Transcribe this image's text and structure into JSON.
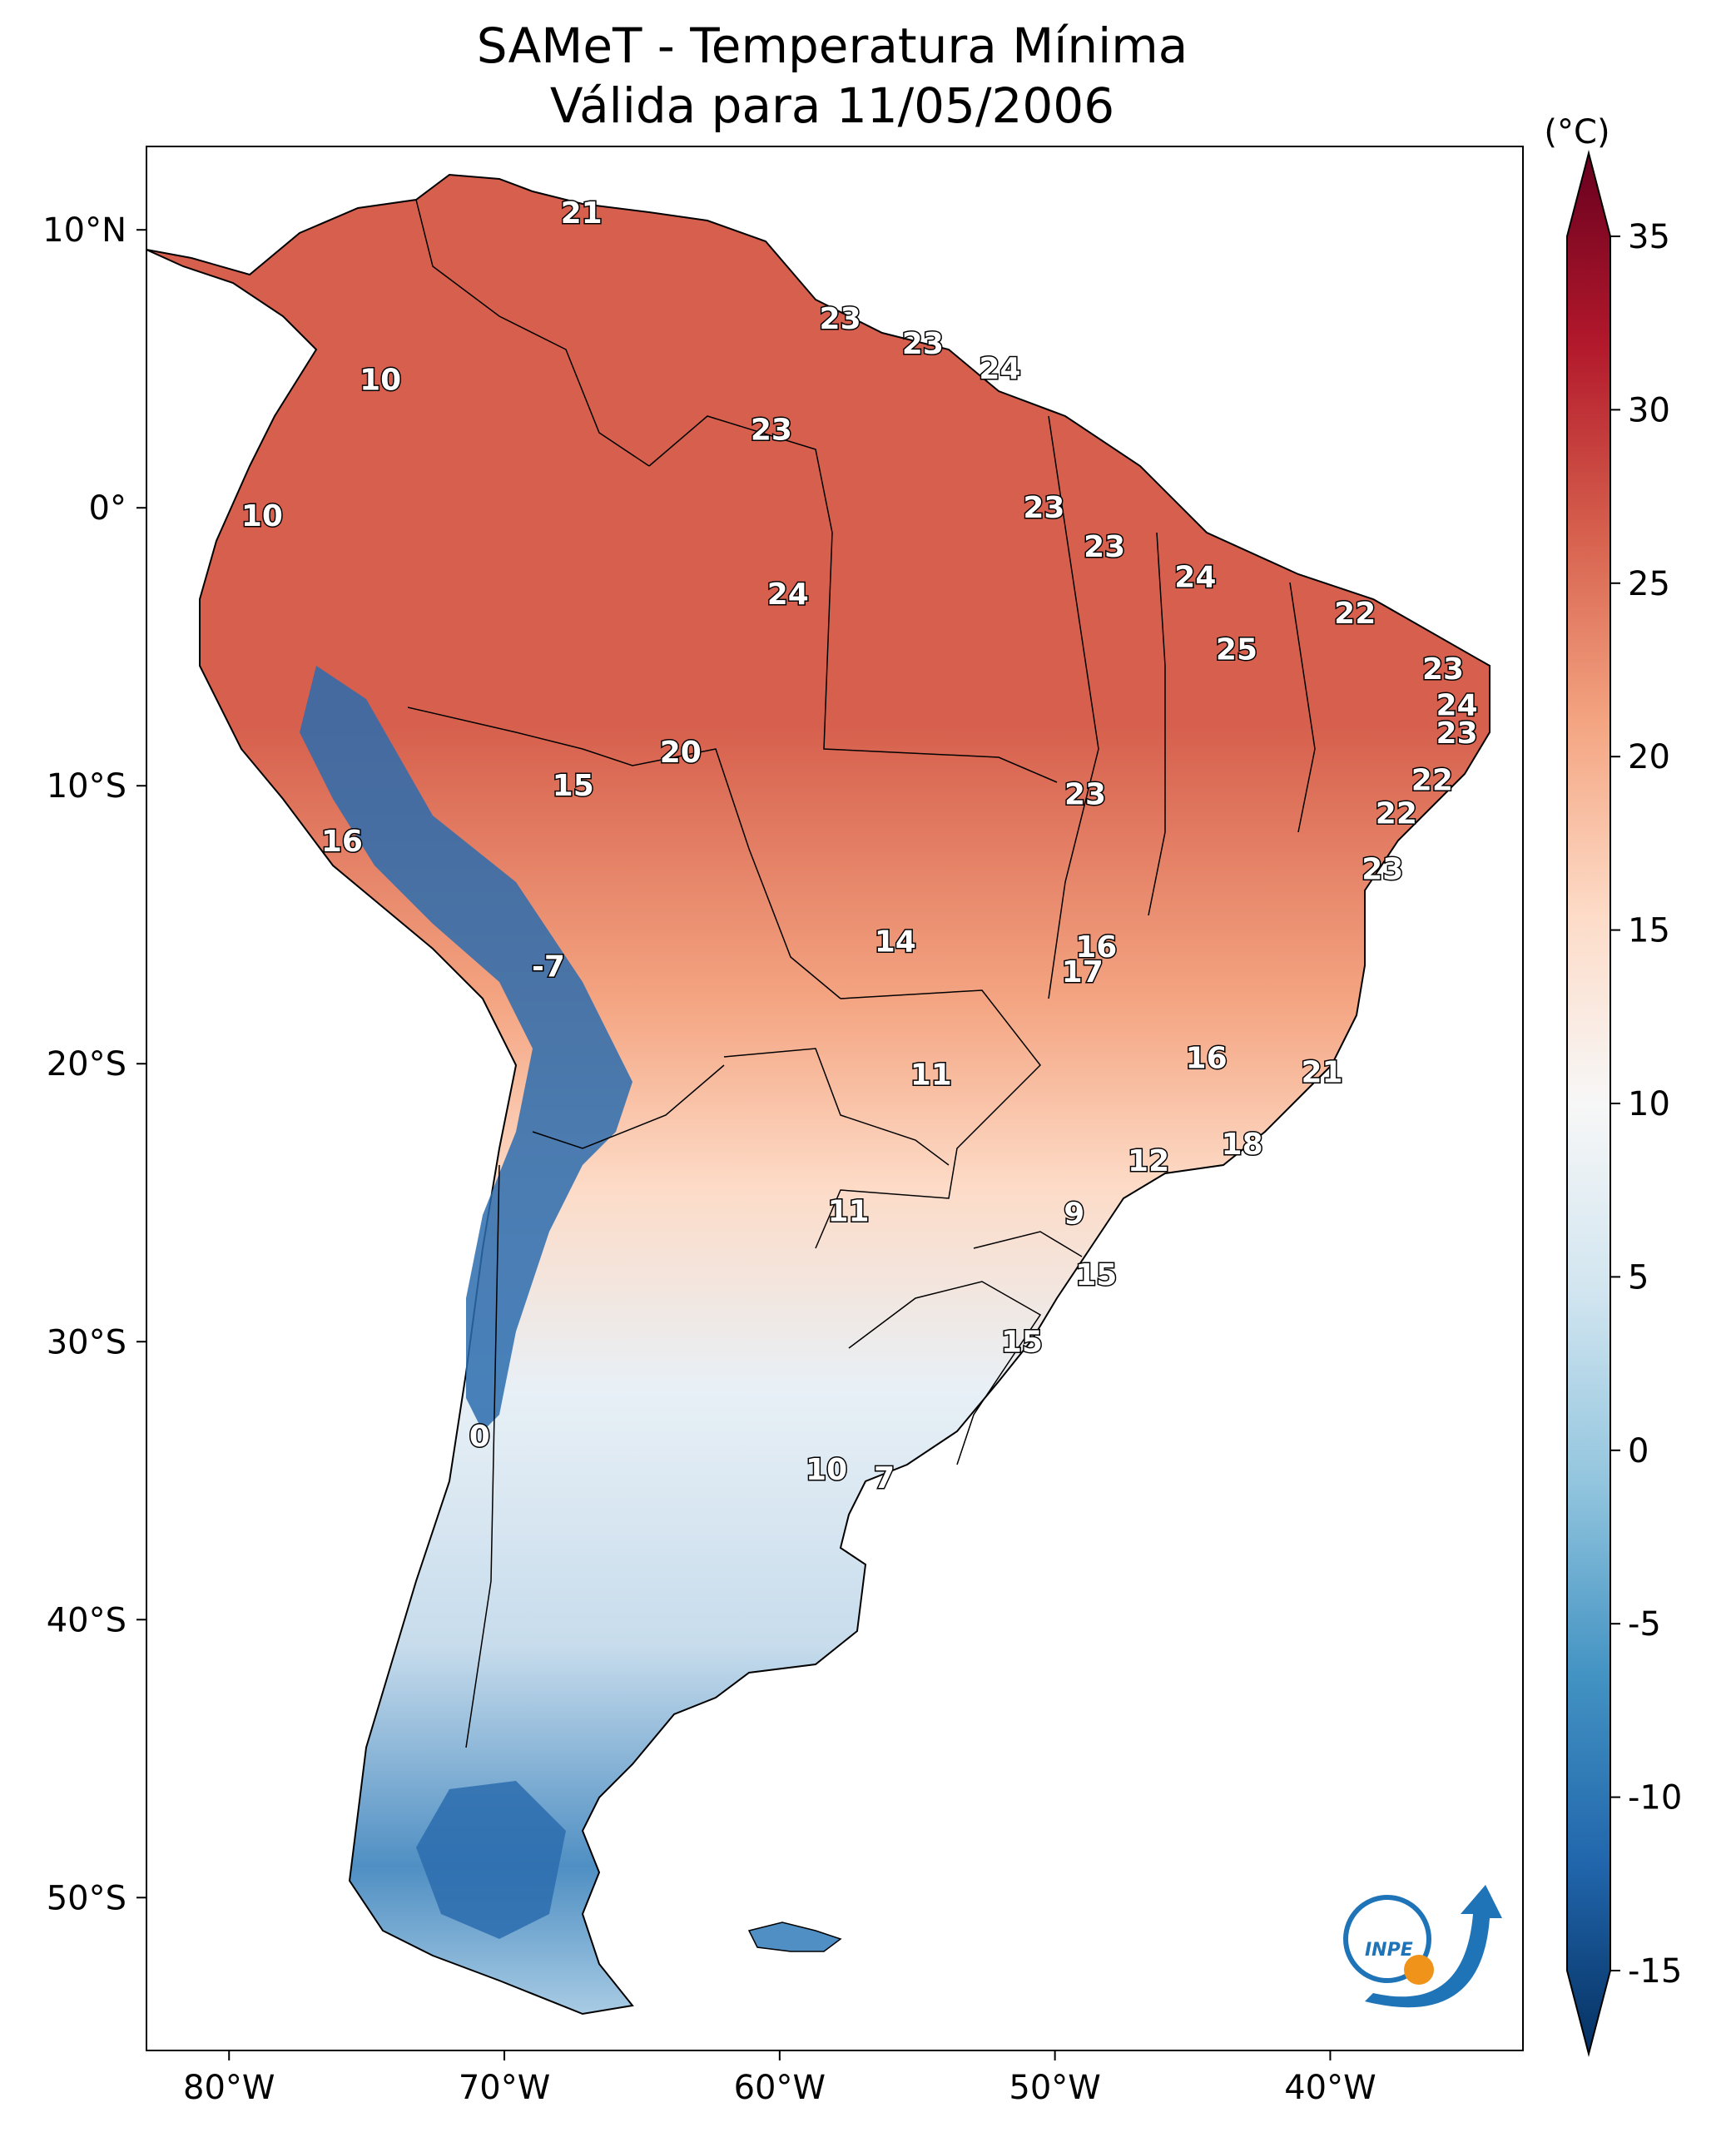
{
  "title": {
    "line1": "SAMeT - Temperatura Mínima",
    "line2": "Válida para 11/05/2006"
  },
  "map": {
    "lon_ticks": [
      "80°W",
      "70°W",
      "60°W",
      "50°W",
      "40°W"
    ],
    "lat_ticks": [
      "10°N",
      "0°",
      "10°S",
      "20°S",
      "30°S",
      "40°S",
      "50°S"
    ],
    "lon_values": [
      -80,
      -70,
      -60,
      -50,
      -40
    ],
    "lat_values": [
      10,
      0,
      -10,
      -20,
      -30,
      -40,
      -50
    ],
    "extent": {
      "lon": [
        -83,
        -33
      ],
      "lat": [
        -55.5,
        13
      ]
    }
  },
  "colorbar": {
    "unit": "(°C)",
    "ticks": [
      "35",
      "30",
      "25",
      "20",
      "15",
      "10",
      "5",
      "0",
      "-5",
      "-10",
      "-15"
    ],
    "tick_values": [
      35,
      30,
      25,
      20,
      15,
      10,
      5,
      0,
      -5,
      -10,
      -15
    ],
    "range": [
      -15,
      35
    ],
    "colormap": "RdBu_r",
    "colors": [
      "#053061",
      "#2166ac",
      "#4393c3",
      "#92c5de",
      "#d1e5f0",
      "#f7f7f7",
      "#fddbc7",
      "#f4a582",
      "#d6604d",
      "#b2182b",
      "#67001f"
    ]
  },
  "station_labels": [
    {
      "text": "21",
      "lon": -67.2,
      "lat": 10.6
    },
    {
      "text": "10",
      "lon": -74.5,
      "lat": 4.6
    },
    {
      "text": "23",
      "lon": -57.8,
      "lat": 6.8
    },
    {
      "text": "23",
      "lon": -54.8,
      "lat": 5.9
    },
    {
      "text": "24",
      "lon": -52.0,
      "lat": 5.0
    },
    {
      "text": "23",
      "lon": -60.3,
      "lat": 2.8
    },
    {
      "text": "10",
      "lon": -78.8,
      "lat": -0.3
    },
    {
      "text": "23",
      "lon": -50.4,
      "lat": 0.0
    },
    {
      "text": "23",
      "lon": -48.2,
      "lat": -1.4
    },
    {
      "text": "24",
      "lon": -59.7,
      "lat": -3.1
    },
    {
      "text": "24",
      "lon": -44.9,
      "lat": -2.5
    },
    {
      "text": "22",
      "lon": -39.1,
      "lat": -3.8
    },
    {
      "text": "25",
      "lon": -43.4,
      "lat": -5.1
    },
    {
      "text": "23",
      "lon": -35.9,
      "lat": -5.8
    },
    {
      "text": "24",
      "lon": -35.4,
      "lat": -7.1
    },
    {
      "text": "23",
      "lon": -35.4,
      "lat": -8.1
    },
    {
      "text": "20",
      "lon": -63.6,
      "lat": -8.8
    },
    {
      "text": "22",
      "lon": -36.3,
      "lat": -9.8
    },
    {
      "text": "15",
      "lon": -67.5,
      "lat": -10.0
    },
    {
      "text": "23",
      "lon": -48.9,
      "lat": -10.3
    },
    {
      "text": "22",
      "lon": -37.6,
      "lat": -11.0
    },
    {
      "text": "16",
      "lon": -75.9,
      "lat": -12.0
    },
    {
      "text": "23",
      "lon": -38.1,
      "lat": -13.0
    },
    {
      "text": "14",
      "lon": -55.8,
      "lat": -15.6
    },
    {
      "text": "16",
      "lon": -48.5,
      "lat": -15.8
    },
    {
      "text": "17",
      "lon": -49.0,
      "lat": -16.7
    },
    {
      "text": "-7",
      "lon": -68.4,
      "lat": -16.5
    },
    {
      "text": "16",
      "lon": -44.5,
      "lat": -19.8
    },
    {
      "text": "11",
      "lon": -54.5,
      "lat": -20.4
    },
    {
      "text": "21",
      "lon": -40.3,
      "lat": -20.3
    },
    {
      "text": "18",
      "lon": -43.2,
      "lat": -22.9
    },
    {
      "text": "12",
      "lon": -46.6,
      "lat": -23.5
    },
    {
      "text": "11",
      "lon": -57.5,
      "lat": -25.3
    },
    {
      "text": "9",
      "lon": -49.3,
      "lat": -25.4
    },
    {
      "text": "15",
      "lon": -48.5,
      "lat": -27.6
    },
    {
      "text": "15",
      "lon": -51.2,
      "lat": -30.0
    },
    {
      "text": "0",
      "lon": -70.9,
      "lat": -33.4
    },
    {
      "text": "10",
      "lon": -58.3,
      "lat": -34.6
    },
    {
      "text": "7",
      "lon": -56.2,
      "lat": -34.9
    }
  ],
  "logo": {
    "text": "INPE"
  }
}
